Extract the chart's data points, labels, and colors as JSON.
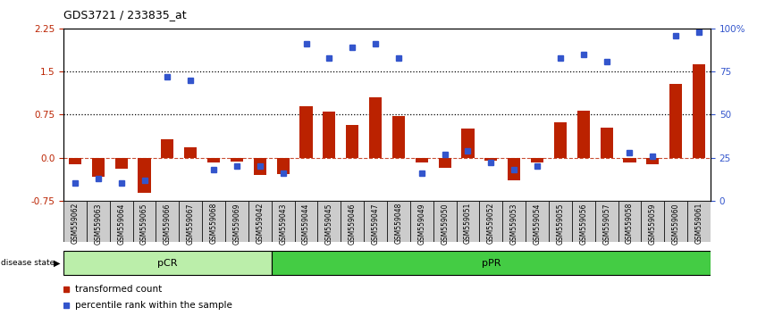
{
  "title": "GDS3721 / 233835_at",
  "samples": [
    "GSM559062",
    "GSM559063",
    "GSM559064",
    "GSM559065",
    "GSM559066",
    "GSM559067",
    "GSM559068",
    "GSM559069",
    "GSM559042",
    "GSM559043",
    "GSM559044",
    "GSM559045",
    "GSM559046",
    "GSM559047",
    "GSM559048",
    "GSM559049",
    "GSM559050",
    "GSM559051",
    "GSM559052",
    "GSM559053",
    "GSM559054",
    "GSM559055",
    "GSM559056",
    "GSM559057",
    "GSM559058",
    "GSM559059",
    "GSM559060",
    "GSM559061"
  ],
  "transformed_count": [
    -0.12,
    -0.33,
    -0.2,
    -0.62,
    0.32,
    0.18,
    -0.08,
    -0.07,
    -0.3,
    -0.28,
    0.9,
    0.8,
    0.57,
    1.05,
    0.72,
    -0.08,
    -0.18,
    0.5,
    -0.05,
    -0.4,
    -0.08,
    0.62,
    0.82,
    0.52,
    -0.08,
    -0.12,
    1.28,
    1.62
  ],
  "percentile_rank": [
    10,
    13,
    10,
    12,
    72,
    70,
    18,
    20,
    20,
    16,
    91,
    83,
    89,
    91,
    83,
    16,
    27,
    29,
    22,
    18,
    20,
    83,
    85,
    81,
    28,
    26,
    96,
    98
  ],
  "pCR_count": 9,
  "pPR_count": 19,
  "ylim": [
    -0.75,
    2.25
  ],
  "yticks_left": [
    -0.75,
    0.0,
    0.75,
    1.5,
    2.25
  ],
  "yticks_right": [
    0,
    25,
    50,
    75,
    100
  ],
  "hlines": [
    0.75,
    1.5
  ],
  "bar_color": "#bb2200",
  "dot_color": "#3355cc",
  "pCR_color": "#bbeeaa",
  "pPR_color": "#44cc44",
  "tick_bg_color": "#cccccc",
  "legend_labels": [
    "transformed count",
    "percentile rank within the sample"
  ]
}
